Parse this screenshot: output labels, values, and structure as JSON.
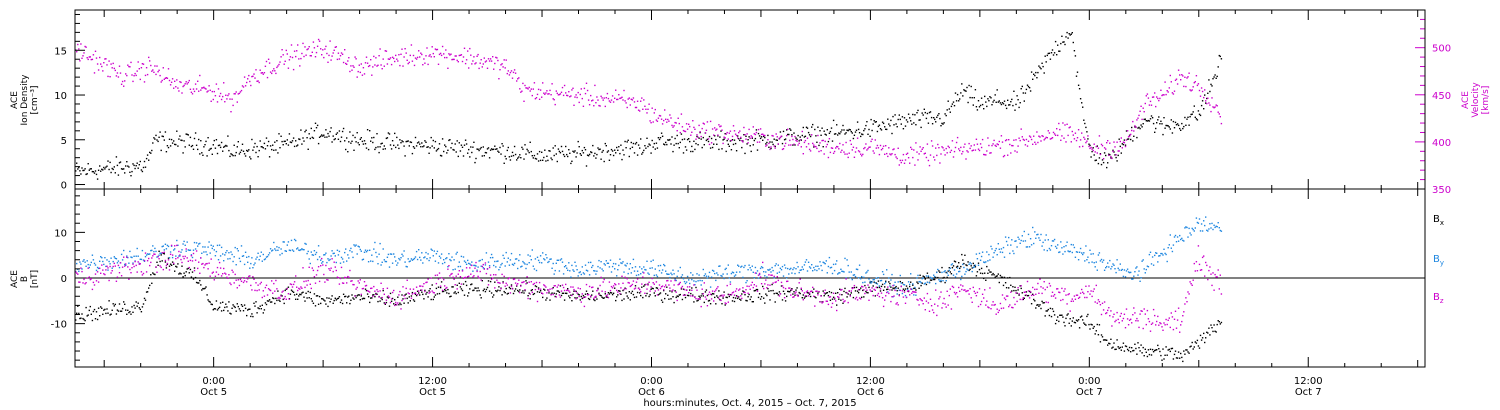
{
  "figure": {
    "xlabel": "hours:minutes, Oct.  4, 2015 – Oct.  7, 2015",
    "time_ticks": [
      {
        "hours": 0,
        "time": "0:00",
        "date": "Oct 5"
      },
      {
        "hours": 12,
        "time": "12:00",
        "date": "Oct 5"
      },
      {
        "hours": 24,
        "time": "0:00",
        "date": "Oct 6"
      },
      {
        "hours": 36,
        "time": "12:00",
        "date": "Oct 6"
      },
      {
        "hours": 48,
        "time": "0:00",
        "date": "Oct 7"
      },
      {
        "hours": 60,
        "time": "12:00",
        "date": "Oct 7"
      }
    ]
  },
  "chart_data": [
    {
      "type": "scatter",
      "panel": "top",
      "title": "",
      "x_units": "hours relative to Oct 5 00:00",
      "xlim": [
        -7.6,
        66.4
      ],
      "data_end_hour": 55.2,
      "ylabel_left": [
        "ACE",
        "Ion Density",
        "[cm⁻³]"
      ],
      "ylabel_right": [
        "ACE",
        "Velocity",
        "[km/s]"
      ],
      "ylim_left": [
        -0.5,
        19.5
      ],
      "ylim_right": [
        350,
        540
      ],
      "left_ticks": [
        0,
        5,
        10,
        15
      ],
      "right_ticks": [
        350,
        400,
        450,
        500
      ],
      "colors": {
        "left": "#000000",
        "right": "#cc00cc"
      },
      "series": [
        {
          "axis": "left",
          "color": "#000000",
          "noise": 0.8,
          "points": [
            [
              -7.6,
              1.5
            ],
            [
              -3.8,
              2.2
            ],
            [
              -3.2,
              5
            ],
            [
              0,
              4.5
            ],
            [
              1,
              3.8
            ],
            [
              4,
              4.5
            ],
            [
              6,
              6
            ],
            [
              8,
              5
            ],
            [
              10,
              4.6
            ],
            [
              12,
              4.4
            ],
            [
              14,
              4
            ],
            [
              16,
              3.8
            ],
            [
              18,
              3.3
            ],
            [
              20,
              3.5
            ],
            [
              22,
              4
            ],
            [
              23.5,
              4.2
            ],
            [
              24,
              4.8
            ],
            [
              28,
              4.8
            ],
            [
              30,
              5
            ],
            [
              32,
              5.5
            ],
            [
              34,
              5.8
            ],
            [
              36,
              6.3
            ],
            [
              38,
              7.2
            ],
            [
              40,
              7.5
            ],
            [
              41,
              10.5
            ],
            [
              42,
              9
            ],
            [
              43,
              9.5
            ],
            [
              44,
              9
            ],
            [
              45,
              12
            ],
            [
              46,
              15
            ],
            [
              47,
              17.5
            ],
            [
              47.5,
              9
            ],
            [
              48,
              4
            ],
            [
              49,
              2.5
            ],
            [
              50,
              5
            ],
            [
              51,
              7.5
            ],
            [
              52,
              6.5
            ],
            [
              53,
              7
            ],
            [
              54,
              8
            ],
            [
              54.8,
              12
            ],
            [
              55.2,
              14
            ]
          ]
        },
        {
          "axis": "right",
          "color": "#cc00cc",
          "noise": 8,
          "points": [
            [
              -7.6,
              500
            ],
            [
              -5,
              470
            ],
            [
              -3.5,
              480
            ],
            [
              -2,
              460
            ],
            [
              0,
              455
            ],
            [
              1,
              445
            ],
            [
              2,
              470
            ],
            [
              4,
              490
            ],
            [
              6,
              500
            ],
            [
              8,
              480
            ],
            [
              10,
              490
            ],
            [
              12,
              495
            ],
            [
              14,
              490
            ],
            [
              16,
              480
            ],
            [
              17,
              455
            ],
            [
              20,
              450
            ],
            [
              22,
              445
            ],
            [
              23.5,
              440
            ],
            [
              24,
              430
            ],
            [
              26,
              415
            ],
            [
              28,
              410
            ],
            [
              30,
              405
            ],
            [
              32,
              400
            ],
            [
              34,
              395
            ],
            [
              36,
              395
            ],
            [
              38,
              385
            ],
            [
              40,
              390
            ],
            [
              42,
              395
            ],
            [
              44,
              400
            ],
            [
              46,
              410
            ],
            [
              47.5,
              405
            ],
            [
              48,
              395
            ],
            [
              49,
              395
            ],
            [
              50,
              400
            ],
            [
              51,
              440
            ],
            [
              52,
              450
            ],
            [
              53,
              470
            ],
            [
              54,
              460
            ],
            [
              54.5,
              450
            ],
            [
              55.2,
              430
            ]
          ]
        }
      ]
    },
    {
      "type": "scatter",
      "panel": "bottom",
      "title": "",
      "x_units": "hours relative to Oct 5 00:00",
      "xlim": [
        -7.6,
        66.4
      ],
      "data_end_hour": 55.2,
      "ylabel_left": [
        "ACE",
        "B",
        "[nT]"
      ],
      "ylim": [
        -19.5,
        19.5
      ],
      "ticks": [
        -10,
        0,
        10
      ],
      "legend": "right",
      "series": [
        {
          "name": "Bx",
          "name_main": "B",
          "name_sub": "x",
          "color": "#000000",
          "noise": 1.2,
          "points": [
            [
              -7.6,
              -8
            ],
            [
              -4,
              -6
            ],
            [
              -3,
              5
            ],
            [
              -1,
              0
            ],
            [
              0,
              -6
            ],
            [
              2,
              -7
            ],
            [
              4,
              -3
            ],
            [
              6,
              -5
            ],
            [
              8,
              -4
            ],
            [
              10,
              -5
            ],
            [
              12,
              -3
            ],
            [
              16,
              -2
            ],
            [
              20,
              -4
            ],
            [
              24,
              -3
            ],
            [
              28,
              -4
            ],
            [
              32,
              -3
            ],
            [
              34,
              -4
            ],
            [
              36,
              -2
            ],
            [
              38,
              -2
            ],
            [
              40,
              1
            ],
            [
              41,
              4
            ],
            [
              43,
              0
            ],
            [
              45,
              -5
            ],
            [
              46,
              -8
            ],
            [
              47,
              -9
            ],
            [
              48,
              -10
            ],
            [
              49,
              -14
            ],
            [
              50,
              -15
            ],
            [
              51,
              -16
            ],
            [
              52,
              -16
            ],
            [
              53,
              -17
            ],
            [
              54,
              -14
            ],
            [
              55.2,
              -9
            ]
          ]
        },
        {
          "name": "By",
          "name_main": "B",
          "name_sub": "y",
          "color": "#1f87e0",
          "noise": 1.5,
          "points": [
            [
              -7.6,
              3
            ],
            [
              -4,
              5
            ],
            [
              -2,
              7
            ],
            [
              0,
              6
            ],
            [
              2,
              4
            ],
            [
              4,
              7
            ],
            [
              6,
              5
            ],
            [
              8,
              6
            ],
            [
              10,
              4
            ],
            [
              12,
              5
            ],
            [
              14,
              3
            ],
            [
              16,
              4
            ],
            [
              18,
              4
            ],
            [
              20,
              2
            ],
            [
              22,
              3
            ],
            [
              24,
              2
            ],
            [
              26,
              0
            ],
            [
              28,
              1
            ],
            [
              30,
              2
            ],
            [
              32,
              2
            ],
            [
              34,
              3
            ],
            [
              36,
              0
            ],
            [
              38,
              -2
            ],
            [
              40,
              1
            ],
            [
              41,
              2
            ],
            [
              43,
              6
            ],
            [
              44,
              8
            ],
            [
              45,
              9
            ],
            [
              46,
              7
            ],
            [
              47,
              6
            ],
            [
              48,
              5
            ],
            [
              49,
              3
            ],
            [
              50,
              1
            ],
            [
              51,
              2
            ],
            [
              52,
              6
            ],
            [
              53,
              9
            ],
            [
              54,
              12
            ],
            [
              55.2,
              11
            ]
          ]
        },
        {
          "name": "Bz",
          "name_main": "B",
          "name_sub": "z",
          "color": "#cc00cc",
          "noise": 1.8,
          "points": [
            [
              -7.6,
              0
            ],
            [
              -4,
              3
            ],
            [
              -2,
              5
            ],
            [
              0,
              2
            ],
            [
              2,
              -1
            ],
            [
              4,
              -3
            ],
            [
              6,
              2
            ],
            [
              8,
              -2
            ],
            [
              10,
              -4
            ],
            [
              12,
              -1
            ],
            [
              14,
              2
            ],
            [
              16,
              -1
            ],
            [
              18,
              -2
            ],
            [
              20,
              -3
            ],
            [
              22,
              -2
            ],
            [
              24,
              -1
            ],
            [
              26,
              -3
            ],
            [
              28,
              -4
            ],
            [
              30,
              0
            ],
            [
              32,
              -3
            ],
            [
              34,
              -4
            ],
            [
              36,
              -3
            ],
            [
              38,
              -4
            ],
            [
              40,
              -5
            ],
            [
              41,
              -2
            ],
            [
              43,
              -6
            ],
            [
              45,
              -2
            ],
            [
              46,
              -3
            ],
            [
              47,
              -4
            ],
            [
              48,
              -2
            ],
            [
              49,
              -8
            ],
            [
              50,
              -9
            ],
            [
              51,
              -8
            ],
            [
              52,
              -10
            ],
            [
              53,
              -9
            ],
            [
              54,
              5
            ],
            [
              55.2,
              -2
            ]
          ]
        }
      ]
    }
  ]
}
